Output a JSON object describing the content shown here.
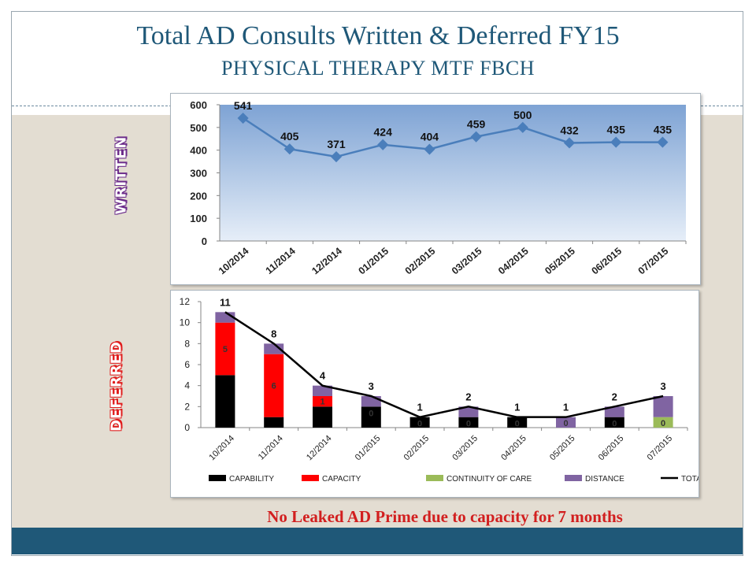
{
  "slide": {
    "title": "Total AD Consults Written & Deferred FY15",
    "subtitle": "PHYSICAL THERAPY MTF FBCH",
    "label_written": "WRITTEN",
    "label_deferred": "DEFERRED",
    "note": "No Leaked AD Prime due to capacity for 7 months",
    "colors": {
      "accent": "#1f5878",
      "note": "#d21f1f",
      "written_label": "#6b2b8a",
      "deferred_label": "#e01e1e"
    }
  },
  "chart_data": [
    {
      "type": "line",
      "title": "",
      "xlabel": "",
      "ylabel": "",
      "categories": [
        "10/2014",
        "11/2014",
        "12/2014",
        "01/2015",
        "02/2015",
        "03/2015",
        "04/2015",
        "05/2015",
        "06/2015",
        "07/2015"
      ],
      "series": [
        {
          "values": [
            541,
            405,
            371,
            424,
            404,
            459,
            500,
            432,
            435,
            435
          ],
          "color": "#4a7ebb"
        }
      ],
      "y_ticks": [
        "0",
        "100",
        "200",
        "300",
        "400",
        "500",
        "600"
      ],
      "ylim": [
        0,
        600
      ],
      "data_labels": [
        "541",
        "405",
        "371",
        "424",
        "404",
        "459",
        "500",
        "432",
        "435",
        "435"
      ],
      "background": "gradient blue",
      "grid": false
    },
    {
      "type": "bar",
      "stacked": true,
      "title": "",
      "xlabel": "",
      "ylabel": "",
      "categories": [
        "10/2014",
        "11/2014",
        "12/2014",
        "01/2015",
        "02/2015",
        "03/2015",
        "04/2015",
        "05/2015",
        "06/2015",
        "07/2015"
      ],
      "series": [
        {
          "name": "CAPABILITY",
          "values": [
            5,
            1,
            2,
            2,
            1,
            1,
            1,
            0,
            1,
            0
          ],
          "color": "#000000"
        },
        {
          "name": "CAPACITY",
          "values": [
            5,
            6,
            1,
            0,
            0,
            0,
            0,
            0,
            0,
            0
          ],
          "color": "#ff0000"
        },
        {
          "name": "CONTINUITY OF CARE",
          "values": [
            0,
            0,
            0,
            0,
            0,
            0,
            0,
            0,
            0,
            1
          ],
          "color": "#9bbb59"
        },
        {
          "name": "DISTANCE",
          "values": [
            1,
            1,
            1,
            1,
            0,
            1,
            0,
            1,
            1,
            2
          ],
          "color": "#8064a2"
        },
        {
          "name": "TOTAL",
          "type": "line",
          "values": [
            11,
            8,
            4,
            3,
            1,
            2,
            1,
            1,
            2,
            3
          ],
          "color": "#000000"
        }
      ],
      "capacity_labels": [
        "5",
        "6",
        "1",
        "0",
        "0",
        "0",
        "0",
        "0",
        "0",
        "0"
      ],
      "total_labels": [
        "11",
        "8",
        "4",
        "3",
        "1",
        "2",
        "1",
        "1",
        "2",
        "3"
      ],
      "y_ticks": [
        "0",
        "2",
        "4",
        "6",
        "8",
        "10",
        "12"
      ],
      "ylim": [
        0,
        12
      ],
      "legend_position": "bottom",
      "grid": false
    }
  ]
}
